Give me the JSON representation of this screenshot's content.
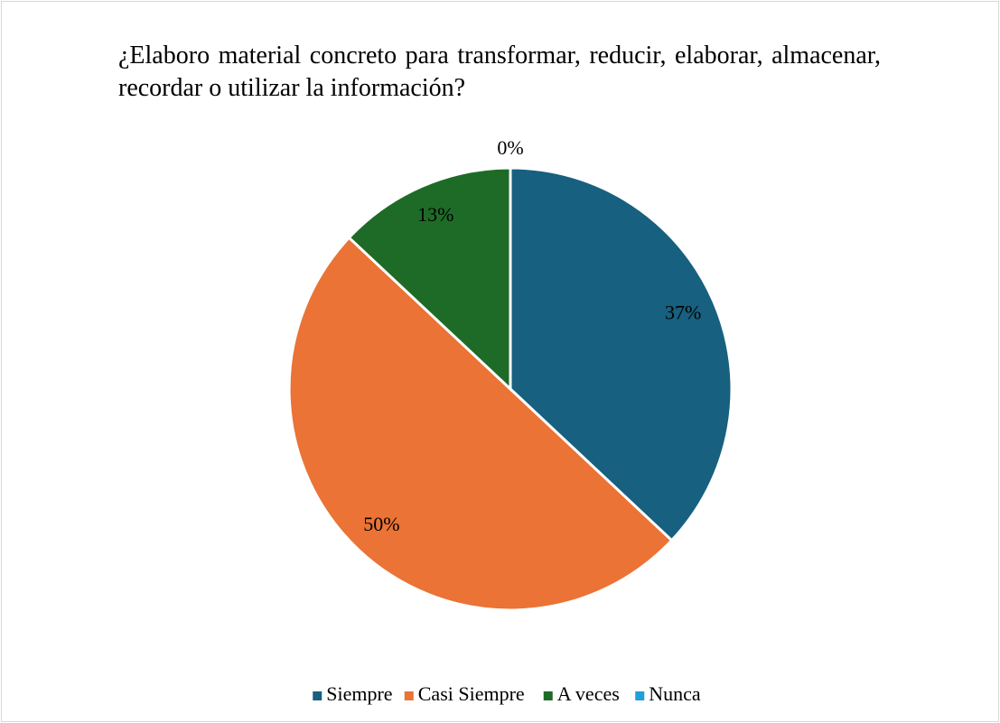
{
  "chart_data": {
    "type": "pie",
    "title": "¿Elaboro material concreto para transformar, reducir, elaborar, almacenar, recordar o utilizar la información?",
    "categories": [
      "Siempre",
      "Casi Siempre",
      "A veces",
      "Nunca"
    ],
    "values": [
      37,
      50,
      13,
      0
    ],
    "value_labels": [
      "37%",
      "50%",
      "13%",
      "0%"
    ],
    "colors": [
      "#17607f",
      "#ea7335",
      "#1e6b27",
      "#1fa0d8"
    ],
    "legend": "bottom"
  }
}
